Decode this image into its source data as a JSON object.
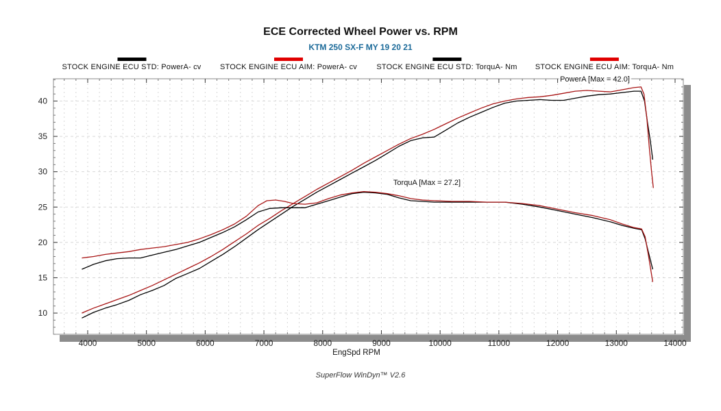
{
  "header": {
    "title": "ECE Corrected Wheel Power vs. RPM",
    "subtitle": "KTM 250 SX-F MY 19 20 21",
    "subtitle_color": "#1b6a99"
  },
  "legend": {
    "position": "top",
    "items": [
      {
        "label": "STOCK ENGINE ECU STD: PowerA- cv",
        "swatch_color": "#000000"
      },
      {
        "label": "STOCK ENGINE ECU AIM: PowerA- cv",
        "swatch_color": "#e00000"
      },
      {
        "label": "STOCK ENGINE ECU STD: TorquA- Nm",
        "swatch_color": "#000000"
      },
      {
        "label": "STOCK ENGINE ECU AIM: TorquA- Nm",
        "swatch_color": "#e00000"
      }
    ]
  },
  "annotations": {
    "power_max": "PowerA [Max = 42.0]",
    "torque_max": "TorquA [Max = 27.2]"
  },
  "footer": {
    "text": "SuperFlow WinDyn™ V2.6"
  },
  "chart_data": {
    "type": "line",
    "title": "ECE Corrected Wheel Power vs. RPM",
    "subtitle": "KTM 250 SX-F MY 19 20 21",
    "xlabel": "EngSpd RPM",
    "ylabel": "",
    "xlim": [
      3417,
      14140
    ],
    "ylim": [
      7.0,
      43.15
    ],
    "x_ticks": [
      4000,
      5000,
      6000,
      7000,
      8000,
      9000,
      10000,
      11000,
      12000,
      13000,
      14000
    ],
    "y_ticks": [
      10,
      15,
      20,
      25,
      30,
      35,
      40
    ],
    "minor_x_step": 200,
    "minor_y_step": 1,
    "grid": "dashed light-gray: vertical every 200 RPM, horizontal at major y ticks",
    "gridline_color": "#d7d7d7",
    "border_color": "#8a8a8a",
    "shadow_color": "#8c8c8c",
    "series": [
      {
        "id": "power-std",
        "name": "STOCK ENGINE ECU STD: PowerA- cv",
        "color": "#000000",
        "points": [
          [
            3900,
            9.3
          ],
          [
            4100,
            10.1
          ],
          [
            4300,
            10.7
          ],
          [
            4500,
            11.2
          ],
          [
            4700,
            11.8
          ],
          [
            4900,
            12.6
          ],
          [
            5100,
            13.2
          ],
          [
            5300,
            13.9
          ],
          [
            5500,
            14.9
          ],
          [
            5700,
            15.6
          ],
          [
            5900,
            16.3
          ],
          [
            6100,
            17.3
          ],
          [
            6300,
            18.3
          ],
          [
            6500,
            19.4
          ],
          [
            6700,
            20.6
          ],
          [
            6900,
            21.8
          ],
          [
            7100,
            22.9
          ],
          [
            7300,
            24.0
          ],
          [
            7500,
            25.1
          ],
          [
            7700,
            26.1
          ],
          [
            7900,
            27.1
          ],
          [
            8100,
            28.0
          ],
          [
            8300,
            28.9
          ],
          [
            8500,
            29.8
          ],
          [
            8700,
            30.7
          ],
          [
            8900,
            31.6
          ],
          [
            9100,
            32.6
          ],
          [
            9300,
            33.6
          ],
          [
            9500,
            34.4
          ],
          [
            9700,
            34.8
          ],
          [
            9900,
            34.9
          ],
          [
            10100,
            35.9
          ],
          [
            10300,
            36.9
          ],
          [
            10500,
            37.7
          ],
          [
            10700,
            38.4
          ],
          [
            10900,
            39.1
          ],
          [
            11100,
            39.7
          ],
          [
            11300,
            40.0
          ],
          [
            11500,
            40.1
          ],
          [
            11700,
            40.2
          ],
          [
            11900,
            40.1
          ],
          [
            12100,
            40.1
          ],
          [
            12300,
            40.4
          ],
          [
            12500,
            40.7
          ],
          [
            12700,
            40.9
          ],
          [
            12900,
            41.0
          ],
          [
            13100,
            41.2
          ],
          [
            13300,
            41.4
          ],
          [
            13420,
            41.4
          ],
          [
            13480,
            40.0
          ],
          [
            13530,
            37.0
          ],
          [
            13580,
            34.3
          ],
          [
            13620,
            31.7
          ]
        ]
      },
      {
        "id": "power-aim",
        "name": "STOCK ENGINE ECU AIM: PowerA- cv",
        "color": "#a81414",
        "points": [
          [
            3900,
            10.0
          ],
          [
            4100,
            10.7
          ],
          [
            4300,
            11.3
          ],
          [
            4500,
            11.9
          ],
          [
            4700,
            12.5
          ],
          [
            4900,
            13.2
          ],
          [
            5100,
            13.9
          ],
          [
            5300,
            14.7
          ],
          [
            5500,
            15.5
          ],
          [
            5700,
            16.3
          ],
          [
            5900,
            17.1
          ],
          [
            6100,
            18.0
          ],
          [
            6300,
            19.0
          ],
          [
            6500,
            20.1
          ],
          [
            6700,
            21.2
          ],
          [
            6900,
            22.4
          ],
          [
            7100,
            23.4
          ],
          [
            7300,
            24.5
          ],
          [
            7500,
            25.5
          ],
          [
            7700,
            26.5
          ],
          [
            7900,
            27.5
          ],
          [
            8100,
            28.4
          ],
          [
            8300,
            29.3
          ],
          [
            8500,
            30.2
          ],
          [
            8700,
            31.2
          ],
          [
            8900,
            32.1
          ],
          [
            9100,
            33.0
          ],
          [
            9300,
            33.9
          ],
          [
            9500,
            34.7
          ],
          [
            9700,
            35.3
          ],
          [
            9900,
            36.0
          ],
          [
            10100,
            36.8
          ],
          [
            10300,
            37.6
          ],
          [
            10500,
            38.3
          ],
          [
            10700,
            39.0
          ],
          [
            10900,
            39.6
          ],
          [
            11100,
            40.0
          ],
          [
            11300,
            40.3
          ],
          [
            11500,
            40.5
          ],
          [
            11700,
            40.6
          ],
          [
            11900,
            40.8
          ],
          [
            12100,
            41.1
          ],
          [
            12300,
            41.4
          ],
          [
            12500,
            41.5
          ],
          [
            12700,
            41.4
          ],
          [
            12900,
            41.3
          ],
          [
            13100,
            41.6
          ],
          [
            13300,
            41.9
          ],
          [
            13420,
            42.0
          ],
          [
            13470,
            41.0
          ],
          [
            13520,
            37.5
          ],
          [
            13560,
            33.5
          ],
          [
            13600,
            30.0
          ],
          [
            13630,
            27.7
          ]
        ]
      },
      {
        "id": "torque-std",
        "name": "STOCK ENGINE ECU STD: TorquA- Nm",
        "color": "#000000",
        "points": [
          [
            3900,
            16.2
          ],
          [
            4100,
            16.9
          ],
          [
            4300,
            17.4
          ],
          [
            4500,
            17.7
          ],
          [
            4700,
            17.8
          ],
          [
            4900,
            17.8
          ],
          [
            5100,
            18.2
          ],
          [
            5300,
            18.6
          ],
          [
            5500,
            19.0
          ],
          [
            5700,
            19.5
          ],
          [
            5900,
            20.0
          ],
          [
            6100,
            20.7
          ],
          [
            6300,
            21.4
          ],
          [
            6500,
            22.2
          ],
          [
            6700,
            23.2
          ],
          [
            6900,
            24.3
          ],
          [
            7100,
            24.8
          ],
          [
            7300,
            24.9
          ],
          [
            7500,
            24.9
          ],
          [
            7700,
            24.9
          ],
          [
            7900,
            25.4
          ],
          [
            8100,
            25.9
          ],
          [
            8300,
            26.4
          ],
          [
            8500,
            26.9
          ],
          [
            8700,
            27.1
          ],
          [
            8900,
            27.0
          ],
          [
            9100,
            26.8
          ],
          [
            9300,
            26.3
          ],
          [
            9500,
            25.9
          ],
          [
            9700,
            25.8
          ],
          [
            9900,
            25.7
          ],
          [
            10200,
            25.7
          ],
          [
            10500,
            25.7
          ],
          [
            10800,
            25.7
          ],
          [
            11100,
            25.7
          ],
          [
            11400,
            25.4
          ],
          [
            11700,
            25.0
          ],
          [
            12000,
            24.5
          ],
          [
            12300,
            24.0
          ],
          [
            12600,
            23.5
          ],
          [
            12900,
            22.9
          ],
          [
            13100,
            22.4
          ],
          [
            13300,
            22.0
          ],
          [
            13430,
            21.8
          ],
          [
            13490,
            20.5
          ],
          [
            13550,
            18.5
          ],
          [
            13620,
            16.2
          ]
        ]
      },
      {
        "id": "torque-aim",
        "name": "STOCK ENGINE ECU AIM: TorquA- Nm",
        "color": "#a81414",
        "points": [
          [
            3900,
            17.8
          ],
          [
            4100,
            18.0
          ],
          [
            4300,
            18.3
          ],
          [
            4500,
            18.5
          ],
          [
            4700,
            18.7
          ],
          [
            4900,
            19.0
          ],
          [
            5100,
            19.2
          ],
          [
            5300,
            19.4
          ],
          [
            5500,
            19.7
          ],
          [
            5700,
            20.0
          ],
          [
            5900,
            20.5
          ],
          [
            6100,
            21.1
          ],
          [
            6300,
            21.8
          ],
          [
            6500,
            22.6
          ],
          [
            6700,
            23.7
          ],
          [
            6900,
            25.2
          ],
          [
            7050,
            25.9
          ],
          [
            7200,
            26.0
          ],
          [
            7350,
            25.8
          ],
          [
            7500,
            25.5
          ],
          [
            7700,
            25.4
          ],
          [
            7900,
            25.6
          ],
          [
            8100,
            26.2
          ],
          [
            8300,
            26.7
          ],
          [
            8500,
            27.0
          ],
          [
            8700,
            27.2
          ],
          [
            8900,
            27.1
          ],
          [
            9100,
            26.9
          ],
          [
            9300,
            26.6
          ],
          [
            9500,
            26.2
          ],
          [
            9700,
            26.0
          ],
          [
            9900,
            25.9
          ],
          [
            10200,
            25.8
          ],
          [
            10500,
            25.8
          ],
          [
            10800,
            25.7
          ],
          [
            11100,
            25.7
          ],
          [
            11400,
            25.5
          ],
          [
            11700,
            25.2
          ],
          [
            12000,
            24.7
          ],
          [
            12300,
            24.2
          ],
          [
            12600,
            23.8
          ],
          [
            12900,
            23.2
          ],
          [
            13100,
            22.6
          ],
          [
            13300,
            22.1
          ],
          [
            13430,
            21.9
          ],
          [
            13490,
            20.8
          ],
          [
            13550,
            18.0
          ],
          [
            13620,
            14.4
          ]
        ]
      }
    ],
    "annotations": [
      {
        "text": "PowerA [Max = 42.0]",
        "x_rpm": 12635,
        "y_value": 42.9
      },
      {
        "text": "TorquA [Max = 27.2]",
        "x_rpm": 9770,
        "y_value": 28.3
      }
    ]
  }
}
